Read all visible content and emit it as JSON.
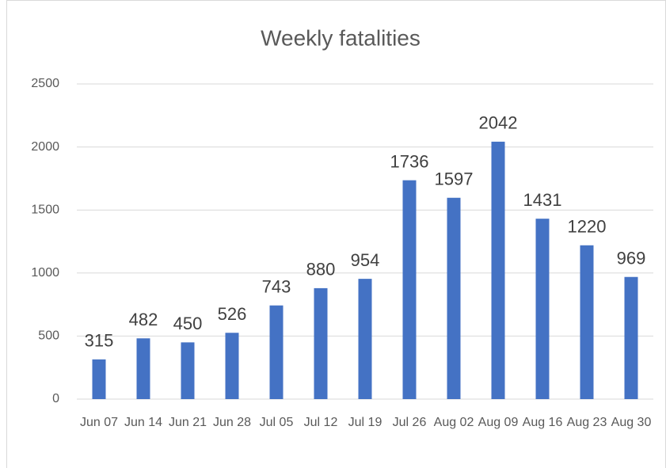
{
  "chart_data": {
    "type": "bar",
    "title": "Weekly fatalities",
    "categories": [
      "Jun 07",
      "Jun 14",
      "Jun 21",
      "Jun 28",
      "Jul 05",
      "Jul 12",
      "Jul 19",
      "Jul 26",
      "Aug 02",
      "Aug 09",
      "Aug 16",
      "Aug 23",
      "Aug 30"
    ],
    "values": [
      315,
      482,
      450,
      526,
      743,
      880,
      954,
      1736,
      1597,
      2042,
      1431,
      1220,
      969
    ],
    "color": "#4472c4",
    "ylim": [
      0,
      2500
    ],
    "yticks": [
      0,
      500,
      1000,
      1500,
      2000,
      2500
    ],
    "grid": true
  }
}
